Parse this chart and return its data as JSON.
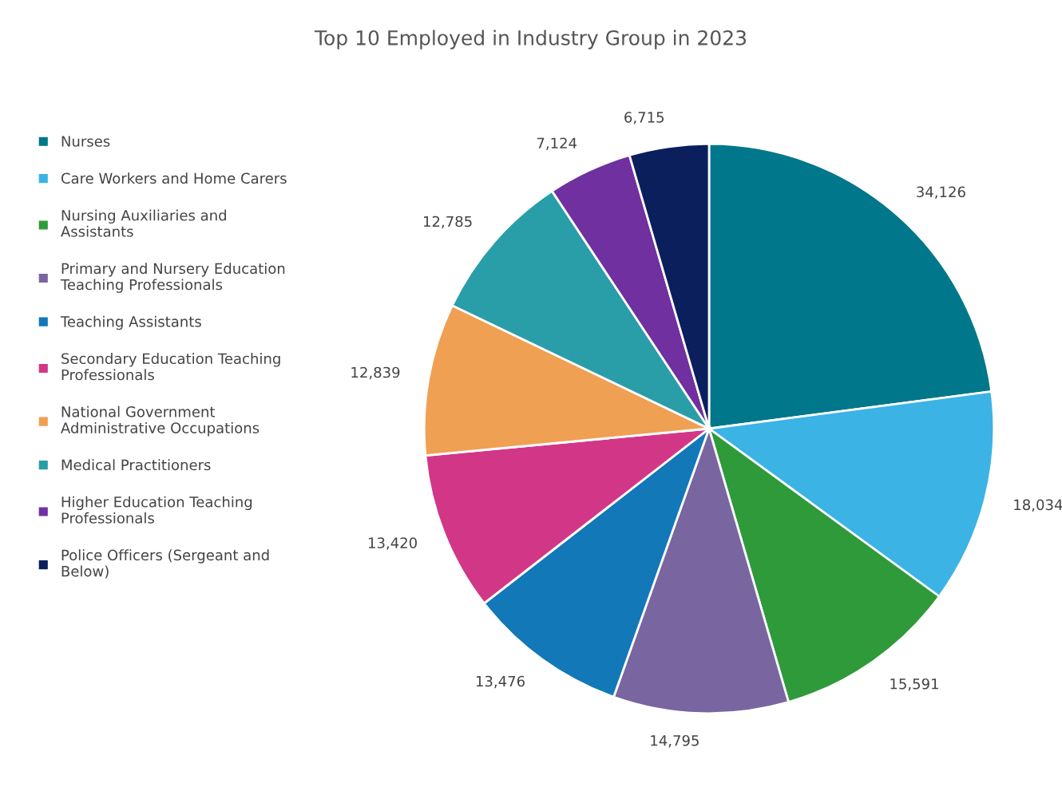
{
  "chart_data": {
    "type": "pie",
    "title": "Top 10 Employed in Industry Group in 2023",
    "categories": [
      "Nurses",
      "Care Workers and Home Carers",
      "Nursing Auxiliaries and Assistants",
      "Primary and Nursery Education Teaching Professionals",
      "Teaching Assistants",
      "Secondary Education Teaching Professionals",
      "National Government Administrative Occupations",
      "Medical Practitioners",
      "Higher Education Teaching Professionals",
      "Police Officers (Sergeant and Below)"
    ],
    "values": [
      34126,
      18034,
      15591,
      14795,
      13476,
      13420,
      12839,
      12785,
      7124,
      6715
    ],
    "colors": [
      "#00778a",
      "#3bb3e5",
      "#2e9a3a",
      "#7965a0",
      "#1278b8",
      "#d23787",
      "#f0a052",
      "#2a9ea8",
      "#7030a0",
      "#0a1f5c"
    ],
    "value_labels": [
      "34,126",
      "18,034",
      "15,591",
      "14,795",
      "13,476",
      "13,420",
      "12,839",
      "12,785",
      "7,124",
      "6,715"
    ],
    "legend": "left"
  }
}
